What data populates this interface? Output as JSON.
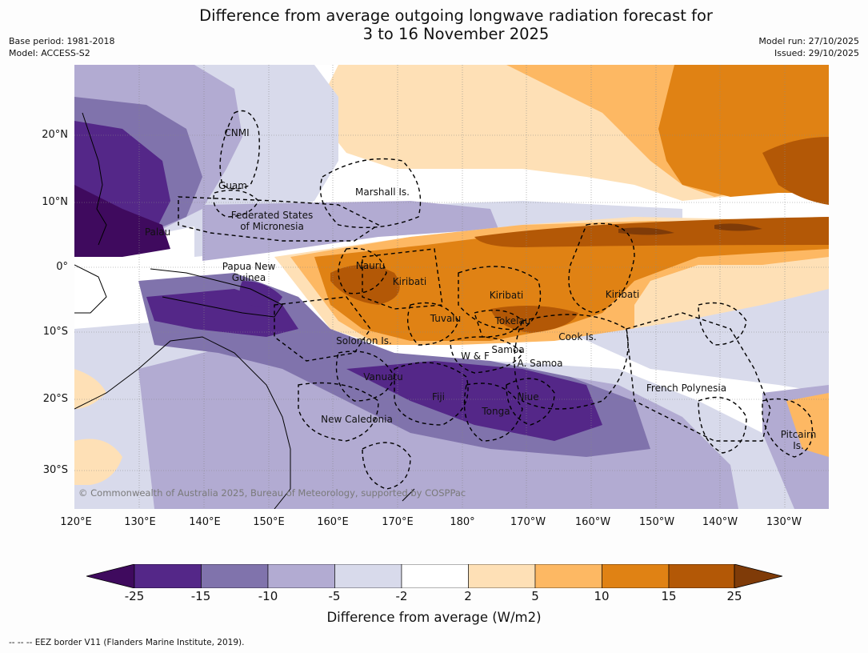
{
  "title_line1": "Difference from average outgoing longwave radiation forecast for",
  "title_line2": "3 to 16 November 2025",
  "meta_left": {
    "base_period": "Base period: 1981-2018",
    "model": "Model: ACCESS-S2"
  },
  "meta_right": {
    "model_run": "Model run: 27/10/2025",
    "issued": "Issued: 29/10/2025"
  },
  "lat_labels": [
    "20°N",
    "10°N",
    "0°",
    "10°S",
    "20°S",
    "30°S"
  ],
  "lon_labels": [
    "120°E",
    "130°E",
    "140°E",
    "150°E",
    "160°E",
    "170°E",
    "180°",
    "170°W",
    "160°W",
    "150°W",
    "140°W",
    "130°W"
  ],
  "places": {
    "cnmi": "CNMI",
    "guam": "Guam",
    "marshall": "Marshall Is.",
    "fsm1": "Federated States",
    "fsm2": "of Micronesia",
    "palau": "Palau",
    "png1": "Papua New",
    "png2": "Guinea",
    "nauru": "Nauru",
    "kiribati_w": "Kiribati",
    "kiribati_c": "Kiribati",
    "kiribati_e": "Kiribati",
    "tuvalu": "Tuvalu",
    "tokelau": "Tokelau",
    "cook": "Cook Is.",
    "solomon": "Solomon Is.",
    "samoa": "Samoa",
    "wf": "W & F",
    "asamoa": "A. Samoa",
    "vanuatu": "Vanuatu",
    "fiji": "Fiji",
    "niue": "Niue",
    "tonga": "Tonga",
    "new_caledonia": "New Caledonia",
    "french_polynesia": "French Polynesia",
    "pitcairn1": "Pitcairn",
    "pitcairn2": "Is."
  },
  "copyright": "© Commonwealth of Australia 2025, Bureau of Meteorology, supported by COSPPac",
  "colorbar": {
    "ticks": [
      "-25",
      "-15",
      "-10",
      "-5",
      "-2",
      "2",
      "5",
      "10",
      "15",
      "25"
    ],
    "colors": [
      "#3f0a5e",
      "#542788",
      "#8073ac",
      "#b2abd2",
      "#d8daeb",
      "#ffffff",
      "#fee0b6",
      "#fdb863",
      "#e08214",
      "#b35806",
      "#7f3b08"
    ],
    "label": "Difference from average (W/m2)"
  },
  "footnote": "-- -- -- EEZ border V11 (Flanders Marine Institute, 2019)."
}
